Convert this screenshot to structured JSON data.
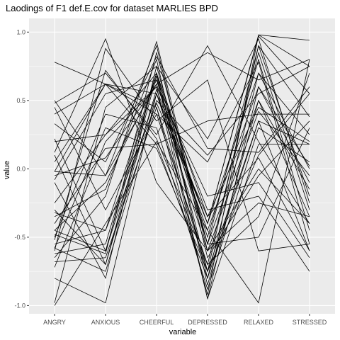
{
  "chart_data": {
    "type": "line",
    "title": "Laodings of F1 def.E.cov for dataset MARLIES BPD",
    "xlabel": "variable",
    "ylabel": "value",
    "categories": [
      "ANGRY",
      "ANXIOUS",
      "CHEERFUL",
      "DEPRESSED",
      "RELAXED",
      "STRESSED"
    ],
    "ylim": [
      -1.06,
      1.1
    ],
    "yticks": [
      -1.0,
      -0.5,
      0.0,
      0.5,
      1.0
    ],
    "ytick_labels": [
      "-1.0",
      "-0.5",
      "0.0",
      "0.5",
      "1.0"
    ],
    "grid": true,
    "panel_color": "#ebebeb",
    "line_color": "#000000",
    "series": [
      {
        "values": [
          0.78,
          0.62,
          0.18,
          0.35,
          0.4,
          0.4
        ]
      },
      {
        "values": [
          0.5,
          -0.05,
          0.62,
          -0.4,
          0.97,
          0.55
        ]
      },
      {
        "values": [
          0.48,
          0.7,
          0.25,
          0.9,
          0.2,
          -0.4
        ]
      },
      {
        "values": [
          0.4,
          0.62,
          0.45,
          -0.92,
          0.98,
          0.94
        ]
      },
      {
        "values": [
          0.33,
          0.05,
          0.82,
          0.15,
          0.12,
          0.6
        ]
      },
      {
        "values": [
          0.22,
          -0.6,
          0.7,
          -0.8,
          0.35,
          0.18
        ]
      },
      {
        "values": [
          0.12,
          0.95,
          -0.1,
          -0.6,
          0.42,
          -0.05
        ]
      },
      {
        "values": [
          0.05,
          0.62,
          0.4,
          -0.7,
          0.85,
          -0.3
        ]
      },
      {
        "values": [
          -0.02,
          0.62,
          0.55,
          -0.45,
          0.6,
          0.02
        ]
      },
      {
        "values": [
          -0.02,
          -0.05,
          0.9,
          -0.65,
          -0.05,
          0.35
        ]
      },
      {
        "values": [
          -0.05,
          0.08,
          0.62,
          0.85,
          0.65,
          0.8
        ]
      },
      {
        "values": [
          -0.1,
          -0.8,
          0.75,
          -0.55,
          0.9,
          -0.2
        ]
      },
      {
        "values": [
          -0.25,
          0.25,
          0.6,
          -0.95,
          0.18,
          0.18
        ]
      },
      {
        "values": [
          -0.32,
          -0.45,
          0.48,
          -0.35,
          0.08,
          -0.6
        ]
      },
      {
        "values": [
          -0.4,
          0.15,
          0.18,
          -0.8,
          0.7,
          0.25
        ]
      },
      {
        "values": [
          -0.45,
          -0.1,
          0.65,
          -0.3,
          -0.2,
          -0.75
        ]
      },
      {
        "values": [
          -0.48,
          -0.62,
          0.85,
          -0.55,
          0.5,
          -0.35
        ]
      },
      {
        "values": [
          -0.5,
          0.4,
          0.3,
          -0.88,
          0.3,
          0.05
        ]
      },
      {
        "values": [
          -0.52,
          0.72,
          0.22,
          -0.7,
          -0.35,
          0.7
        ]
      },
      {
        "values": [
          -0.55,
          -0.45,
          0.7,
          -0.5,
          0.8,
          -0.45
        ]
      },
      {
        "values": [
          -0.58,
          -0.75,
          0.5,
          0.1,
          0.55,
          0.75
        ]
      },
      {
        "values": [
          -0.6,
          0.88,
          0.35,
          0.65,
          -0.6,
          -0.55
        ]
      },
      {
        "values": [
          -0.62,
          -0.55,
          0.7,
          -0.35,
          0.45,
          0.2
        ]
      },
      {
        "values": [
          -0.65,
          -0.2,
          0.93,
          -0.6,
          0.0,
          -0.4
        ]
      },
      {
        "values": [
          -0.68,
          -0.65,
          0.45,
          -0.75,
          0.9,
          0.38
        ]
      },
      {
        "values": [
          -0.72,
          0.2,
          0.6,
          -0.2,
          -0.1,
          -0.65
        ]
      },
      {
        "values": [
          -0.8,
          -0.98,
          0.55,
          -0.4,
          0.98,
          0.75
        ]
      },
      {
        "values": [
          -0.98,
          0.45,
          0.75,
          0.22,
          0.95,
          -0.25
        ]
      },
      {
        "values": [
          -1.0,
          -0.4,
          0.2,
          -0.45,
          -0.98,
          0.8
        ]
      },
      {
        "values": [
          0.1,
          -0.7,
          0.58,
          -0.4,
          0.7,
          0.0
        ]
      },
      {
        "values": [
          -0.35,
          -0.15,
          0.8,
          -0.85,
          0.5,
          -0.15
        ]
      },
      {
        "values": [
          -0.45,
          -0.6,
          0.55,
          -0.6,
          -0.25,
          -0.35
        ]
      },
      {
        "values": [
          0.45,
          -0.3,
          0.4,
          0.05,
          0.78,
          -0.55
        ]
      },
      {
        "values": [
          -0.58,
          0.3,
          0.15,
          -0.75,
          0.35,
          -0.6
        ]
      },
      {
        "values": [
          -0.08,
          0.55,
          0.65,
          -0.55,
          -0.5,
          0.3
        ]
      },
      {
        "values": [
          0.2,
          0.25,
          0.7,
          -0.75,
          0.1,
          0.55
        ]
      },
      {
        "values": [
          -0.3,
          -0.7,
          0.68,
          -0.95,
          0.6,
          -0.1
        ]
      }
    ]
  }
}
